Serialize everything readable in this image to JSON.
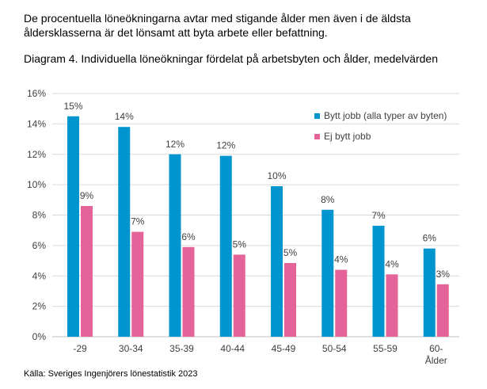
{
  "intro_text": "De procentuella löneökningarna avtar med stigande ålder men även i de äldsta åldersklasserna är det lönsamt att byta arbete eller befattning.",
  "source": "Källa: Sveriges Ingenjörers lönestatistik 2023",
  "chart_data": {
    "type": "bar",
    "title": "Diagram 4. Individuella löneökningar fördelat på arbetsbyten och ålder, medelvärden",
    "xlabel": "",
    "ylabel": "",
    "categories": [
      [
        "-29"
      ],
      [
        "30-34"
      ],
      [
        "35-39"
      ],
      [
        "40-44"
      ],
      [
        "45-49"
      ],
      [
        "50-54"
      ],
      [
        "55-59"
      ],
      [
        "60-",
        "Ålder"
      ]
    ],
    "ylim": [
      0,
      16
    ],
    "yticks": [
      "0%",
      "2%",
      "4%",
      "6%",
      "8%",
      "10%",
      "12%",
      "14%",
      "16%"
    ],
    "ytick_values": [
      0,
      2,
      4,
      6,
      8,
      10,
      12,
      14,
      16
    ],
    "grid": true,
    "legend_position": "right",
    "series": [
      {
        "name": "Bytt jobb (alla typer av byten)",
        "color": "#0095CF",
        "values": [
          14.5,
          13.8,
          12.0,
          11.9,
          9.9,
          8.35,
          7.3,
          5.8
        ],
        "labels": [
          "15%",
          "14%",
          "12%",
          "12%",
          "10%",
          "8%",
          "7%",
          "6%"
        ]
      },
      {
        "name": "Ej bytt jobb",
        "color": "#E4649A",
        "values": [
          8.6,
          6.9,
          5.9,
          5.4,
          4.85,
          4.4,
          4.1,
          3.45
        ],
        "labels": [
          "9%",
          "7%",
          "6%",
          "5%",
          "5%",
          "4%",
          "4%",
          "3%"
        ]
      }
    ]
  }
}
